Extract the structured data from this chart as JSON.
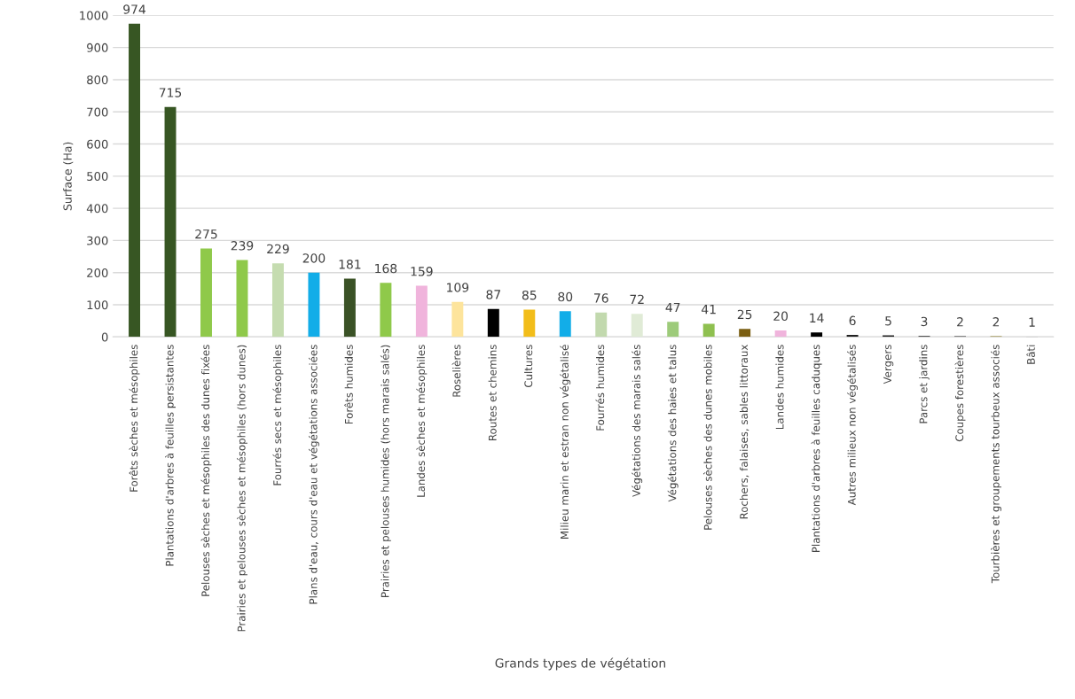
{
  "chart_data": {
    "type": "bar",
    "xlabel": "Grands types de végétation",
    "ylabel": "Surface (Ha)",
    "categories": [
      "Forêts sèches et mésophiles",
      "Plantations d'arbres à feuilles persistantes",
      "Pelouses sèches et mésophiles des dunes fixées",
      "Prairies et pelouses sèches et mésophiles (hors dunes)",
      "Fourrés secs et mésophiles",
      "Plans d'eau, cours d'eau et végétations associées",
      "Forêts humides",
      "Prairies et pelouses humides (hors marais salés)",
      "Landes sèches et mésophiles",
      "Roselières",
      "Routes et chemins",
      "Cultures",
      "Milieu marin et estran non végétalisé",
      "Fourrés humides",
      "Végétations des marais salés",
      "Végétations des haies et talus",
      "Pelouses sèches des dunes mobiles",
      "Rochers, falaises, sables littoraux",
      "Landes humides",
      "Plantations d'arbres à feuilles caduques",
      "Autres milieux non végétalisés",
      "Vergers",
      "Parcs et jardins",
      "Coupes forestières",
      "Tourbières et groupements tourbeux associés",
      "Bâti"
    ],
    "values": [
      974,
      715,
      275,
      239,
      229,
      200,
      181,
      168,
      159,
      109,
      87,
      85,
      80,
      76,
      72,
      47,
      41,
      25,
      20,
      14,
      6,
      5,
      3,
      2,
      2,
      1
    ],
    "colors": [
      "#375623",
      "#375623",
      "#8fc94a",
      "#8fc94a",
      "#c5dcb0",
      "#12ade8",
      "#3a5226",
      "#8fc94a",
      "#f0b4dc",
      "#fde49c",
      "#000000",
      "#f2bd1a",
      "#12ade8",
      "#c2d9ae",
      "#e0ebd6",
      "#9dcb7a",
      "#8fc050",
      "#7a5e12",
      "#f0b4dc",
      "#000000",
      "#222222",
      "#222222",
      "#222222",
      "#222222",
      "#8a7a20",
      "#222222"
    ],
    "ylim": [
      0,
      1000
    ],
    "yticks": [
      0,
      100,
      200,
      300,
      400,
      500,
      600,
      700,
      800,
      900,
      1000
    ],
    "grid": "y",
    "data_labels": true
  }
}
